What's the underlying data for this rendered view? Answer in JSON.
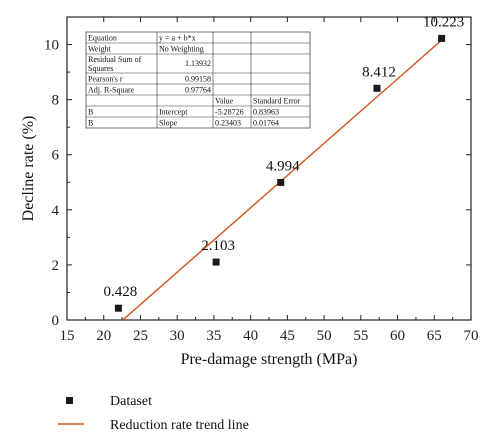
{
  "chart_data": {
    "type": "scatter",
    "xlabel": "Pre-damage strength (MPa)",
    "ylabel": "Decline rate (%)",
    "xlim": [
      15,
      70
    ],
    "ylim": [
      0,
      11
    ],
    "xticks": [
      15,
      20,
      25,
      30,
      35,
      40,
      45,
      50,
      55,
      60,
      65,
      70
    ],
    "yticks": [
      0,
      2,
      4,
      6,
      8,
      10
    ],
    "points": [
      {
        "x": 22.0,
        "y": 0.428,
        "label": "0.428"
      },
      {
        "x": 35.3,
        "y": 2.103,
        "label": "2.103"
      },
      {
        "x": 44.1,
        "y": 4.994,
        "label": "4.994"
      },
      {
        "x": 57.2,
        "y": 8.412,
        "label": "8.412"
      },
      {
        "x": 66.0,
        "y": 10.223,
        "label": "10.223"
      }
    ],
    "trend_line": {
      "intercept": -5.28726,
      "slope": 0.23403,
      "x_range": [
        22.6,
        66.0
      ]
    },
    "colors": {
      "points": "#1a1a1a",
      "trend": "#d2541c",
      "axis": "#222222"
    },
    "legend": {
      "placement": "bottom-left",
      "items": [
        {
          "label": "Dataset",
          "marker": "square"
        },
        {
          "label": "Reduction rate trend line",
          "marker": "line"
        }
      ]
    },
    "stats_table": {
      "rows": [
        [
          "Equation",
          "y = a + b*x",
          "",
          ""
        ],
        [
          "Weight",
          "No Weighting",
          "",
          ""
        ],
        [
          "Residual Sum of Squares",
          "1.13932",
          "",
          ""
        ],
        [
          "Pearson's r",
          "0.99158",
          "",
          ""
        ],
        [
          "Adj. R-Square",
          "0.97764",
          "",
          ""
        ],
        [
          "",
          "",
          "Value",
          "Standard Error"
        ],
        [
          "B",
          "Intercept",
          "-5.28726",
          "0.83963"
        ],
        [
          "B",
          "Slope",
          "0.23403",
          "0.01764"
        ]
      ]
    }
  }
}
